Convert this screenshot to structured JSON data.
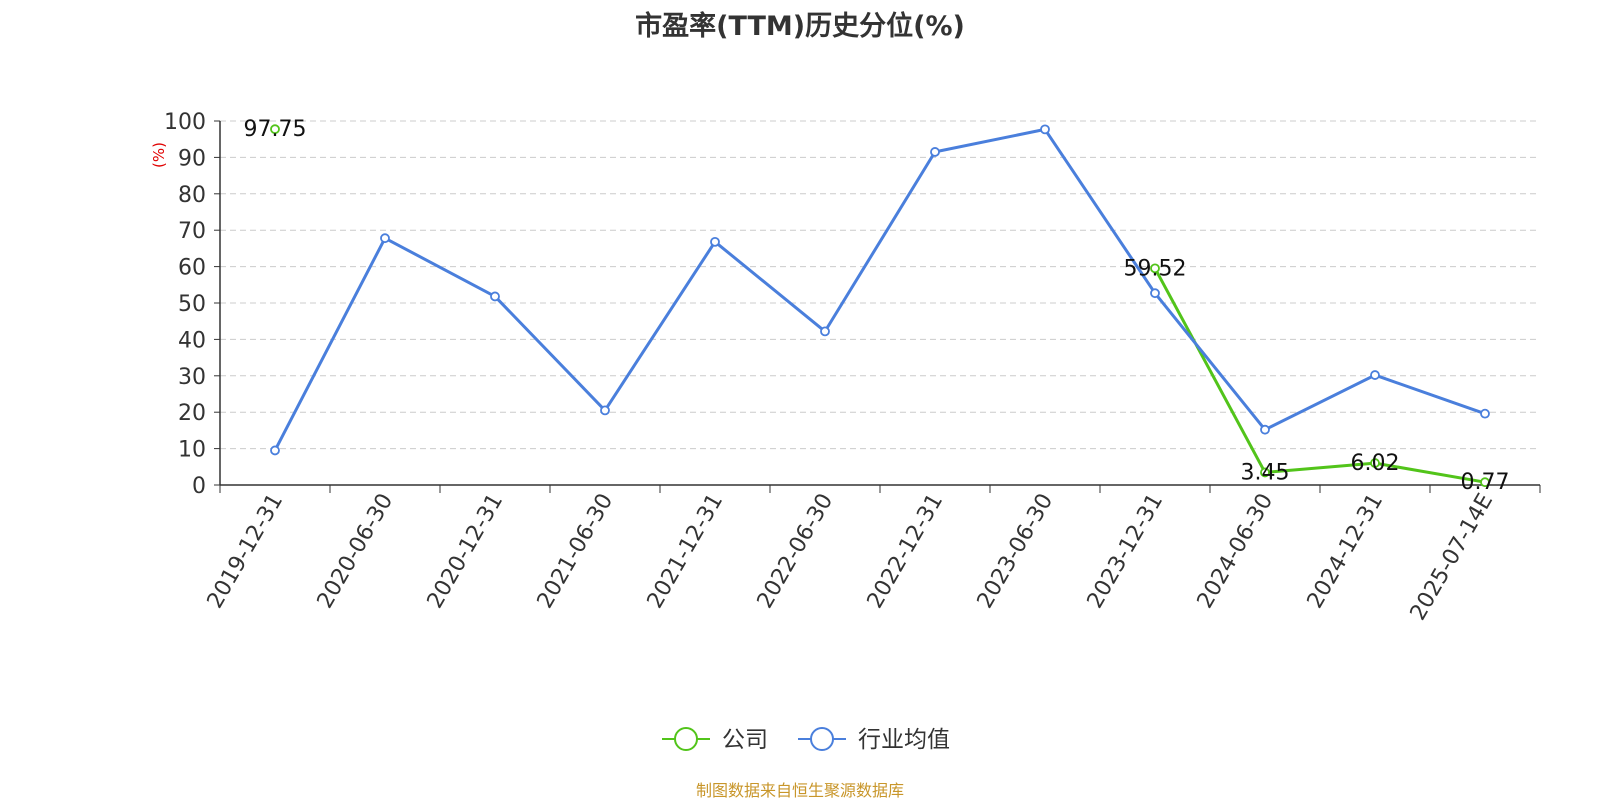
{
  "title": "市盈率(TTM)历史分位(%)",
  "source": "制图数据来自恒生聚源数据库",
  "chart_data": {
    "type": "line",
    "title": "市盈率(TTM)历史分位(%)",
    "xlabel": "",
    "ylabel": "(%)",
    "ylim": [
      0,
      100
    ],
    "yticks": [
      0,
      10,
      20,
      30,
      40,
      50,
      60,
      70,
      80,
      90,
      100
    ],
    "categories": [
      "2019-12-31",
      "2020-06-30",
      "2020-12-31",
      "2021-06-30",
      "2021-12-31",
      "2022-06-30",
      "2022-12-31",
      "2023-06-30",
      "2023-12-31",
      "2024-06-30",
      "2024-12-31",
      "2025-07-14E"
    ],
    "grid": "horizontal-dashed",
    "legend_position": "bottom-center",
    "series": [
      {
        "name": "公司",
        "color": "#52c41a",
        "values": [
          97.75,
          null,
          null,
          null,
          null,
          null,
          null,
          null,
          59.52,
          3.45,
          6.02,
          0.77
        ],
        "labels": [
          "97.75",
          null,
          null,
          null,
          null,
          null,
          null,
          null,
          "59.52",
          "3.45",
          "6.02",
          "0.77"
        ]
      },
      {
        "name": "行业均值",
        "color": "#4a7fdc",
        "values": [
          9.5,
          67.8,
          51.8,
          20.5,
          66.8,
          42.2,
          91.5,
          97.7,
          52.7,
          15.2,
          30.2,
          19.6
        ]
      }
    ]
  }
}
